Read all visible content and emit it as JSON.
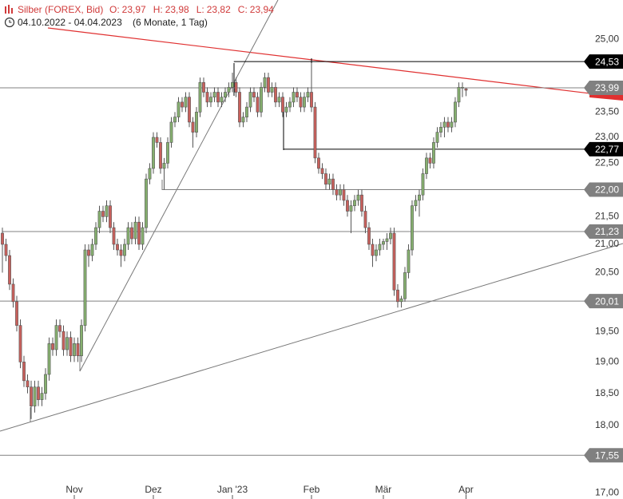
{
  "chart_data": {
    "type": "candlestick",
    "title": "Silber (FOREX, Bid)",
    "quote": [
      {
        "name": "O:",
        "label": "23,97"
      },
      {
        "name": "H:",
        "label": "23,98"
      },
      {
        "name": "L:",
        "label": "23,82"
      },
      {
        "name": "C:",
        "label": "23,94"
      }
    ],
    "date_range": "04.10.2022 - 04.04.2023",
    "period": "(6 Monate, 1 Tag)",
    "log_scale": true,
    "ylim": [
      16.91,
      25.85
    ],
    "yticks": [
      {
        "value": 17,
        "label": "17,00"
      },
      {
        "value": 18,
        "label": "18,00"
      },
      {
        "value": 18.5,
        "label": "18,50"
      },
      {
        "value": 19,
        "label": "19,00"
      },
      {
        "value": 19.5,
        "label": "19,50"
      },
      {
        "value": 20.5,
        "label": "20,50"
      },
      {
        "value": 21,
        "label": "21,00"
      },
      {
        "value": 21.5,
        "label": "21,50"
      },
      {
        "value": 22.5,
        "label": "22,50"
      },
      {
        "value": 23,
        "label": "23,00"
      },
      {
        "value": 23.5,
        "label": "23,50"
      },
      {
        "value": 25,
        "label": "25,00"
      }
    ],
    "xlim": [
      -0.67,
      164.9
    ],
    "xticks": [
      {
        "value": 20,
        "label": "Nov"
      },
      {
        "value": 42,
        "label": "Dez"
      },
      {
        "value": 64,
        "label": "Jan '23"
      },
      {
        "value": 86,
        "label": "Feb"
      },
      {
        "value": 106,
        "label": "Mär"
      },
      {
        "value": 129,
        "label": "Apr"
      }
    ],
    "up_color": "#86b06f",
    "down_color": "#c9605c",
    "levels": [
      {
        "value": 24.53,
        "label": "24,53",
        "color": "#000000",
        "start": 64.4
      },
      {
        "value": 23.99,
        "label": "23,99",
        "color": "#808080",
        "start": -0.67
      },
      {
        "value": 22.77,
        "label": "22,77",
        "color": "#000000",
        "start": 78.2
      },
      {
        "value": 22.0,
        "label": "22,00",
        "color": "#808080",
        "start": 44.4
      },
      {
        "value": 21.23,
        "label": "21,23",
        "color": "#808080",
        "start": 0
      },
      {
        "value": 20.01,
        "label": "20,01",
        "color": "#808080",
        "start": -0.67
      },
      {
        "value": 17.55,
        "label": "17,55",
        "color": "#808080",
        "start": -0.67
      }
    ],
    "open": [
      21.2,
      21.0,
      20.8,
      20.3,
      20.0,
      19.6,
      19.0,
      18.7,
      18.6,
      18.3,
      18.6,
      18.4,
      18.5,
      18.8,
      19.3,
      19.2,
      19.6,
      19.5,
      19.2,
      19.4,
      19.1,
      19.3,
      19.1,
      19.6,
      20.9,
      20.8,
      21.0,
      21.3,
      21.6,
      21.5,
      21.7,
      21.3,
      21.0,
      20.9,
      20.8,
      21.0,
      21.3,
      21.1,
      21.4,
      21.0,
      21.3,
      22.2,
      22.4,
      23.0,
      22.9,
      22.4,
      22.5,
      22.9,
      23.3,
      23.4,
      23.7,
      23.6,
      23.8,
      23.3,
      23.1,
      23.5,
      24.1,
      23.9,
      23.7,
      23.8,
      23.9,
      23.7,
      23.8,
      23.9,
      24.0,
      24.1,
      23.9,
      23.3,
      23.4,
      23.6,
      23.9,
      23.8,
      23.5,
      24.0,
      24.2,
      23.9,
      24.0,
      23.7,
      23.8,
      23.5,
      23.6,
      23.7,
      23.9,
      23.8,
      23.6,
      23.8,
      23.9,
      23.6,
      22.6,
      22.4,
      22.3,
      22.1,
      22.2,
      22.0,
      21.9,
      22.0,
      21.8,
      21.6,
      21.7,
      21.8,
      21.9,
      21.6,
      21.3,
      21.0,
      20.8,
      20.9,
      21.0,
      21.05,
      21.1,
      21.2,
      20.2,
      20.0,
      20.05,
      20.5,
      20.9,
      21.7,
      21.8,
      21.9,
      22.3,
      22.6,
      22.5,
      22.9,
      23.1,
      23.2,
      23.3,
      23.2,
      23.3,
      23.7,
      24.0,
      23.97
    ],
    "high": [
      21.3,
      21.1,
      20.9,
      20.4,
      20.1,
      19.7,
      19.1,
      18.8,
      18.7,
      18.7,
      18.7,
      18.6,
      18.9,
      19.4,
      19.4,
      19.7,
      19.7,
      19.6,
      19.5,
      19.5,
      19.4,
      19.4,
      19.7,
      21.0,
      21.0,
      21.1,
      21.4,
      21.7,
      21.7,
      21.8,
      21.8,
      21.4,
      21.1,
      21.0,
      21.1,
      21.4,
      21.4,
      21.5,
      21.5,
      21.4,
      22.3,
      22.5,
      23.1,
      23.1,
      23.0,
      22.6,
      23.0,
      23.4,
      23.5,
      23.8,
      23.8,
      23.9,
      23.9,
      23.4,
      23.6,
      24.2,
      24.2,
      24.0,
      23.9,
      24.0,
      24.0,
      23.9,
      24.0,
      24.1,
      24.3,
      24.2,
      24.0,
      23.5,
      23.7,
      24.0,
      24.0,
      23.9,
      24.1,
      24.3,
      24.3,
      24.1,
      24.1,
      23.9,
      23.9,
      23.7,
      23.8,
      24.0,
      24.0,
      23.9,
      23.9,
      24.0,
      24.5,
      23.7,
      22.7,
      22.5,
      22.4,
      22.3,
      22.3,
      22.1,
      22.1,
      22.1,
      21.9,
      21.8,
      21.9,
      22.0,
      22.0,
      21.7,
      21.4,
      21.1,
      21.0,
      21.1,
      21.1,
      21.2,
      21.3,
      21.3,
      20.3,
      20.1,
      20.6,
      21.0,
      21.8,
      21.9,
      22.0,
      22.4,
      22.7,
      22.7,
      23.0,
      23.2,
      23.3,
      23.4,
      23.4,
      23.4,
      23.8,
      24.1,
      24.1,
      23.98
    ],
    "low": [
      20.5,
      20.7,
      20.2,
      19.9,
      19.5,
      18.9,
      18.6,
      18.5,
      18.1,
      18.2,
      18.3,
      18.3,
      18.4,
      18.7,
      19.1,
      19.1,
      19.4,
      19.1,
      19.1,
      19.0,
      19.0,
      19.0,
      19.0,
      19.5,
      20.6,
      20.7,
      20.9,
      21.2,
      21.4,
      21.4,
      21.2,
      20.9,
      20.8,
      20.6,
      20.7,
      20.9,
      21.0,
      21.0,
      20.9,
      20.9,
      21.2,
      22.1,
      22.3,
      22.8,
      22.3,
      22.0,
      22.4,
      22.8,
      23.2,
      23.3,
      23.5,
      23.5,
      23.2,
      22.8,
      23.0,
      23.4,
      23.8,
      23.6,
      23.6,
      23.7,
      23.6,
      23.6,
      23.7,
      23.8,
      23.9,
      23.8,
      23.2,
      23.2,
      23.3,
      23.5,
      23.7,
      23.4,
      23.4,
      23.9,
      23.8,
      23.8,
      23.6,
      23.6,
      23.4,
      23.4,
      23.5,
      23.6,
      23.7,
      23.5,
      23.5,
      23.7,
      23.5,
      22.5,
      22.3,
      22.2,
      22.0,
      22.0,
      21.9,
      21.8,
      21.8,
      21.7,
      21.5,
      21.2,
      21.6,
      21.7,
      21.5,
      21.2,
      20.9,
      20.6,
      20.7,
      20.8,
      20.9,
      20.9,
      21.0,
      20.1,
      19.9,
      19.9,
      20.0,
      20.4,
      20.8,
      21.6,
      21.5,
      21.8,
      22.2,
      22.4,
      22.4,
      22.8,
      23.0,
      23.0,
      23.1,
      23.1,
      23.2,
      23.6,
      23.8,
      23.82
    ],
    "close": [
      21.0,
      20.8,
      20.3,
      20.0,
      19.6,
      19.0,
      18.7,
      18.6,
      18.3,
      18.6,
      18.4,
      18.5,
      18.8,
      19.3,
      19.2,
      19.6,
      19.5,
      19.2,
      19.4,
      19.1,
      19.3,
      19.1,
      19.6,
      20.9,
      20.8,
      21.0,
      21.3,
      21.6,
      21.5,
      21.7,
      21.3,
      21.0,
      20.9,
      20.8,
      21.0,
      21.3,
      21.1,
      21.4,
      21.0,
      21.3,
      22.2,
      22.4,
      23.0,
      22.9,
      22.4,
      22.5,
      22.9,
      23.3,
      23.4,
      23.7,
      23.6,
      23.8,
      23.3,
      23.1,
      23.5,
      24.1,
      23.9,
      23.7,
      23.8,
      23.9,
      23.7,
      23.8,
      23.9,
      24.0,
      24.1,
      23.9,
      23.3,
      23.4,
      23.6,
      23.9,
      23.8,
      23.5,
      24.0,
      24.2,
      23.9,
      24.0,
      23.7,
      23.8,
      23.5,
      23.6,
      23.7,
      23.9,
      23.8,
      23.6,
      23.8,
      23.9,
      23.6,
      22.6,
      22.4,
      22.3,
      22.1,
      22.2,
      22.0,
      21.9,
      22.0,
      21.8,
      21.6,
      21.7,
      21.8,
      21.9,
      21.6,
      21.3,
      21.0,
      20.8,
      20.9,
      21.0,
      21.05,
      21.1,
      21.2,
      20.2,
      20.0,
      20.05,
      20.5,
      20.9,
      21.7,
      21.8,
      21.9,
      22.3,
      22.6,
      22.5,
      22.9,
      23.1,
      23.2,
      23.3,
      23.2,
      23.3,
      23.7,
      24.0,
      24.0,
      23.94
    ]
  }
}
